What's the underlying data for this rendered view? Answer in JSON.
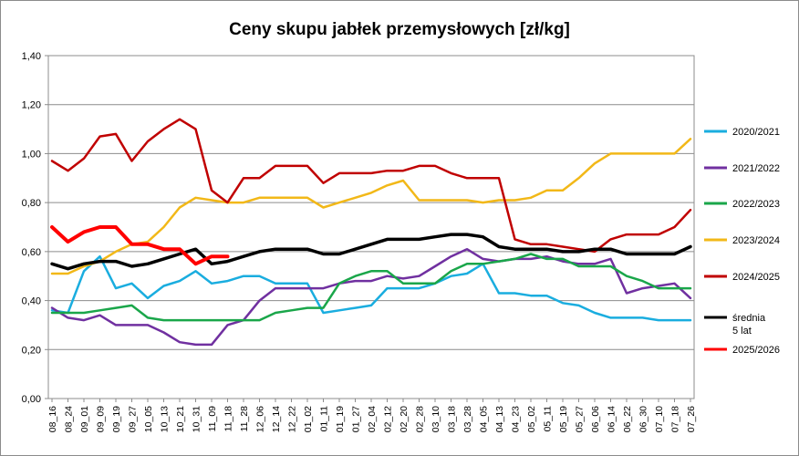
{
  "chart_data": {
    "type": "line",
    "title": "Ceny skupu jabłek przemysłowych [zł/kg]",
    "xlabel": "",
    "ylabel": "",
    "ylim": [
      0,
      1.4
    ],
    "y_ticks": [
      "0,00",
      "0,20",
      "0,40",
      "0,60",
      "0,80",
      "1,00",
      "1,20",
      "1,40"
    ],
    "x_tick_labels": [
      "08_16",
      "08_24",
      "09_01",
      "09_09",
      "09_19",
      "09_27",
      "10_05",
      "10_13",
      "10_21",
      "10_31",
      "11_09",
      "11_18",
      "11_28",
      "12_06",
      "12_14",
      "12_22",
      "01_02",
      "01_11",
      "01_19",
      "01_27",
      "02_04",
      "02_12",
      "02_20",
      "02_28",
      "03_10",
      "03_18",
      "03_28",
      "04_05",
      "04_13",
      "04_23",
      "05_02",
      "05_11",
      "05_19",
      "05_27",
      "06_06",
      "06_14",
      "06_22",
      "06_30",
      "07_10",
      "07_18",
      "07_26"
    ],
    "legend_position": "right",
    "grid": true,
    "series": [
      {
        "name": "2020/2021",
        "color": "#1aaddf",
        "width": 2.5,
        "values": [
          0.36,
          0.35,
          0.52,
          0.58,
          0.45,
          0.47,
          0.41,
          0.46,
          0.48,
          0.52,
          0.47,
          0.48,
          0.5,
          0.5,
          0.47,
          0.47,
          0.47,
          0.35,
          0.36,
          0.37,
          0.38,
          0.45,
          0.45,
          0.45,
          0.47,
          0.5,
          0.51,
          0.55,
          0.43,
          0.43,
          0.42,
          0.42,
          0.39,
          0.38,
          0.35,
          0.33,
          0.33,
          0.33,
          0.32,
          0.32,
          0.32
        ]
      },
      {
        "name": "2021/2022",
        "color": "#7030a0",
        "width": 2.5,
        "values": [
          0.37,
          0.33,
          0.32,
          0.34,
          0.3,
          0.3,
          0.3,
          0.27,
          0.23,
          0.22,
          0.22,
          0.3,
          0.32,
          0.4,
          0.45,
          0.45,
          0.45,
          0.45,
          0.47,
          0.48,
          0.48,
          0.5,
          0.49,
          0.5,
          0.54,
          0.58,
          0.61,
          0.57,
          0.56,
          0.57,
          0.57,
          0.58,
          0.56,
          0.55,
          0.55,
          0.57,
          0.43,
          0.45,
          0.46,
          0.47,
          0.41
        ]
      },
      {
        "name": "2022/2023",
        "color": "#1aa64a",
        "width": 2.5,
        "values": [
          0.35,
          0.35,
          0.35,
          0.36,
          0.37,
          0.38,
          0.33,
          0.32,
          0.32,
          0.32,
          0.32,
          0.32,
          0.32,
          0.32,
          0.35,
          0.36,
          0.37,
          0.37,
          0.47,
          0.5,
          0.52,
          0.52,
          0.47,
          0.47,
          0.47,
          0.52,
          0.55,
          0.55,
          0.56,
          0.57,
          0.59,
          0.57,
          0.57,
          0.54,
          0.54,
          0.54,
          0.5,
          0.48,
          0.45,
          0.45,
          0.45
        ]
      },
      {
        "name": "2023/2024",
        "color": "#f2b818",
        "width": 2.5,
        "values": [
          0.51,
          0.51,
          0.54,
          0.56,
          0.6,
          0.63,
          0.64,
          0.7,
          0.78,
          0.82,
          0.81,
          0.8,
          0.8,
          0.82,
          0.82,
          0.82,
          0.82,
          0.78,
          0.8,
          0.82,
          0.84,
          0.87,
          0.89,
          0.81,
          0.81,
          0.81,
          0.81,
          0.8,
          0.81,
          0.81,
          0.82,
          0.85,
          0.85,
          0.9,
          0.96,
          1.0,
          1.0,
          1.0,
          1.0,
          1.0,
          1.06
        ]
      },
      {
        "name": "2024/2025",
        "color": "#c00000",
        "width": 2.5,
        "values": [
          0.97,
          0.93,
          0.98,
          1.07,
          1.08,
          0.97,
          1.05,
          1.1,
          1.14,
          1.1,
          0.85,
          0.8,
          0.9,
          0.9,
          0.95,
          0.95,
          0.95,
          0.88,
          0.92,
          0.92,
          0.92,
          0.93,
          0.93,
          0.95,
          0.95,
          0.92,
          0.9,
          0.9,
          0.9,
          0.65,
          0.63,
          0.63,
          0.62,
          0.61,
          0.6,
          0.65,
          0.67,
          0.67,
          0.67,
          0.7,
          0.77
        ]
      },
      {
        "name": "średnia 5 lat",
        "color": "#000000",
        "width": 3.5,
        "values": [
          0.55,
          0.53,
          0.55,
          0.56,
          0.56,
          0.54,
          0.55,
          0.57,
          0.59,
          0.61,
          0.55,
          0.56,
          0.58,
          0.6,
          0.61,
          0.61,
          0.61,
          0.59,
          0.59,
          0.61,
          0.63,
          0.65,
          0.65,
          0.65,
          0.66,
          0.67,
          0.67,
          0.66,
          0.62,
          0.61,
          0.61,
          0.61,
          0.6,
          0.6,
          0.61,
          0.61,
          0.59,
          0.59,
          0.59,
          0.59,
          0.62
        ]
      },
      {
        "name": "2025/2026",
        "color": "#ff0000",
        "width": 4,
        "values": [
          0.7,
          0.64,
          0.68,
          0.7,
          0.7,
          0.63,
          0.63,
          0.61,
          0.61,
          0.55,
          0.58,
          0.58
        ]
      }
    ]
  }
}
